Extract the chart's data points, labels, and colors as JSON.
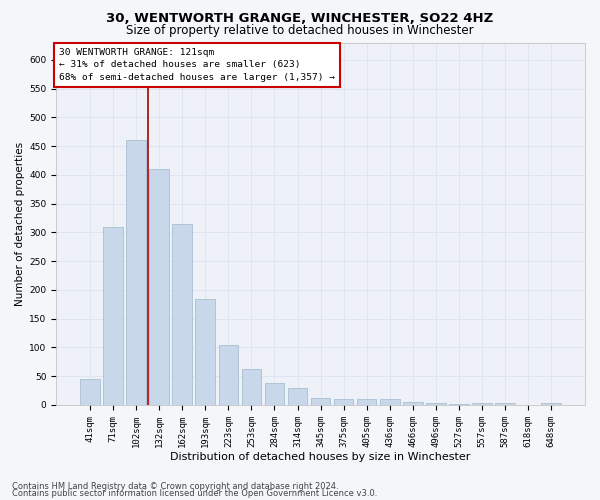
{
  "title": "30, WENTWORTH GRANGE, WINCHESTER, SO22 4HZ",
  "subtitle": "Size of property relative to detached houses in Winchester",
  "xlabel": "Distribution of detached houses by size in Winchester",
  "ylabel": "Number of detached properties",
  "bar_labels": [
    "41sqm",
    "71sqm",
    "102sqm",
    "132sqm",
    "162sqm",
    "193sqm",
    "223sqm",
    "253sqm",
    "284sqm",
    "314sqm",
    "345sqm",
    "375sqm",
    "405sqm",
    "436sqm",
    "466sqm",
    "496sqm",
    "527sqm",
    "557sqm",
    "587sqm",
    "618sqm",
    "648sqm"
  ],
  "bar_heights": [
    45,
    310,
    460,
    410,
    315,
    185,
    105,
    63,
    38,
    30,
    12,
    10,
    10,
    10,
    5,
    3,
    1,
    3,
    3,
    0,
    3
  ],
  "bar_color": "#c8d8ea",
  "bar_edge_color": "#a8bfd0",
  "grid_color": "#dde5f0",
  "background_color": "#eef2f8",
  "fig_background_color": "#f4f6fa",
  "vline_color": "#aa0000",
  "vline_x_pos": 2.5,
  "annotation_text": "30 WENTWORTH GRANGE: 121sqm\n← 31% of detached houses are smaller (623)\n68% of semi-detached houses are larger (1,357) →",
  "annotation_box_facecolor": "#ffffff",
  "annotation_box_edgecolor": "#cc0000",
  "ylim": [
    0,
    630
  ],
  "yticks": [
    0,
    50,
    100,
    150,
    200,
    250,
    300,
    350,
    400,
    450,
    500,
    550,
    600
  ],
  "footer1": "Contains HM Land Registry data © Crown copyright and database right 2024.",
  "footer2": "Contains public sector information licensed under the Open Government Licence v3.0.",
  "title_fontsize": 9.5,
  "subtitle_fontsize": 8.5,
  "xlabel_fontsize": 8,
  "ylabel_fontsize": 7.5,
  "tick_fontsize": 6.5,
  "annot_fontsize": 6.8,
  "footer_fontsize": 6
}
